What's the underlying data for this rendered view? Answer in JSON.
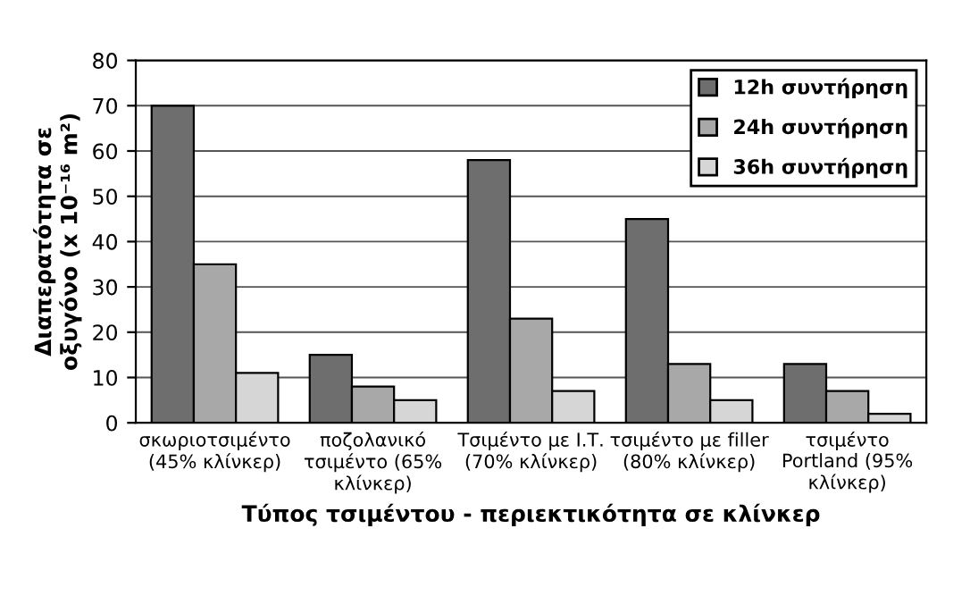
{
  "chart_data": {
    "type": "bar",
    "categories": [
      "σκωριοτσιμέντο\n(45% κλίνκερ)",
      "ποζολανικό\nτσιμέντο (65%\nκλίνκερ)",
      "Τσιμέντο με Ι.Τ.\n(70% κλίνκερ)",
      "τσιμέντο με filler\n(80% κλίνκερ)",
      "τσιμέντο\nPortland (95%\nκλίνκερ)"
    ],
    "series": [
      {
        "name": "12h συντήρηση",
        "color": "#6e6e6e",
        "values": [
          70,
          15,
          58,
          45,
          13
        ]
      },
      {
        "name": "24h συντήρηση",
        "color": "#a8a8a8",
        "values": [
          35,
          8,
          23,
          13,
          7
        ]
      },
      {
        "name": "36h συντήρηση",
        "color": "#d6d6d6",
        "values": [
          11,
          5,
          7,
          5,
          2
        ]
      }
    ],
    "xlabel": "Τύπος τσιμέντου - περιεκτικότητα σε κλίνκερ",
    "ylabel": "Διαπερατότητα σε\nοξυγόνο (x 10⁻¹⁶ m²)",
    "ylim": [
      0,
      80
    ],
    "yticks": [
      0,
      10,
      20,
      30,
      40,
      50,
      60,
      70,
      80
    ],
    "grid": "y",
    "legend": "top right"
  }
}
